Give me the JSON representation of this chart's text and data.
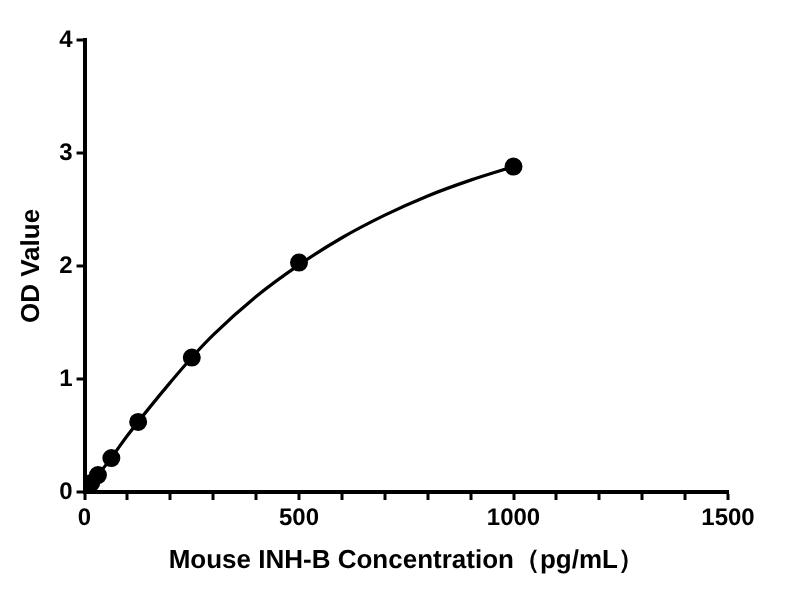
{
  "chart_data": {
    "type": "scatter",
    "xlabel": "Mouse INH-B Concentration（pg/mL）",
    "ylabel": "OD Value",
    "xlim": [
      0,
      1500
    ],
    "xticks": [
      0,
      {
        "value": 100,
        "label": null
      },
      {
        "value": 200,
        "label": null
      },
      {
        "value": 300,
        "label": null
      },
      {
        "value": 400,
        "label": null
      },
      500,
      {
        "value": 600,
        "label": null
      },
      {
        "value": 700,
        "label": null
      },
      {
        "value": 800,
        "label": null
      },
      {
        "value": 900,
        "label": null
      },
      1000,
      {
        "value": 1100,
        "label": null
      },
      {
        "value": 1200,
        "label": null
      },
      {
        "value": 1300,
        "label": null
      },
      {
        "value": 1400,
        "label": null
      },
      1500
    ],
    "ylim": [
      0,
      4
    ],
    "yticks": [
      0,
      1,
      2,
      3,
      4
    ],
    "grid": false,
    "legend": false,
    "marker": "circle",
    "series": [
      {
        "color": "#000000",
        "x": [
          15.6,
          31.25,
          62.5,
          125,
          250,
          500,
          1000
        ],
        "values": [
          0.08,
          0.15,
          0.3,
          0.62,
          1.19,
          2.03,
          2.88
        ]
      },
      {
        "type": "line",
        "color": "#000000",
        "marker": "none",
        "line_style": "solid",
        "x": [
          0,
          50,
          100,
          150,
          200,
          250,
          300,
          400,
          500,
          600,
          700,
          800,
          900,
          1000
        ],
        "values": [
          0.02,
          0.24,
          0.5,
          0.74,
          0.97,
          1.19,
          1.39,
          1.73,
          2.01,
          2.25,
          2.45,
          2.62,
          2.76,
          2.88
        ]
      }
    ]
  }
}
